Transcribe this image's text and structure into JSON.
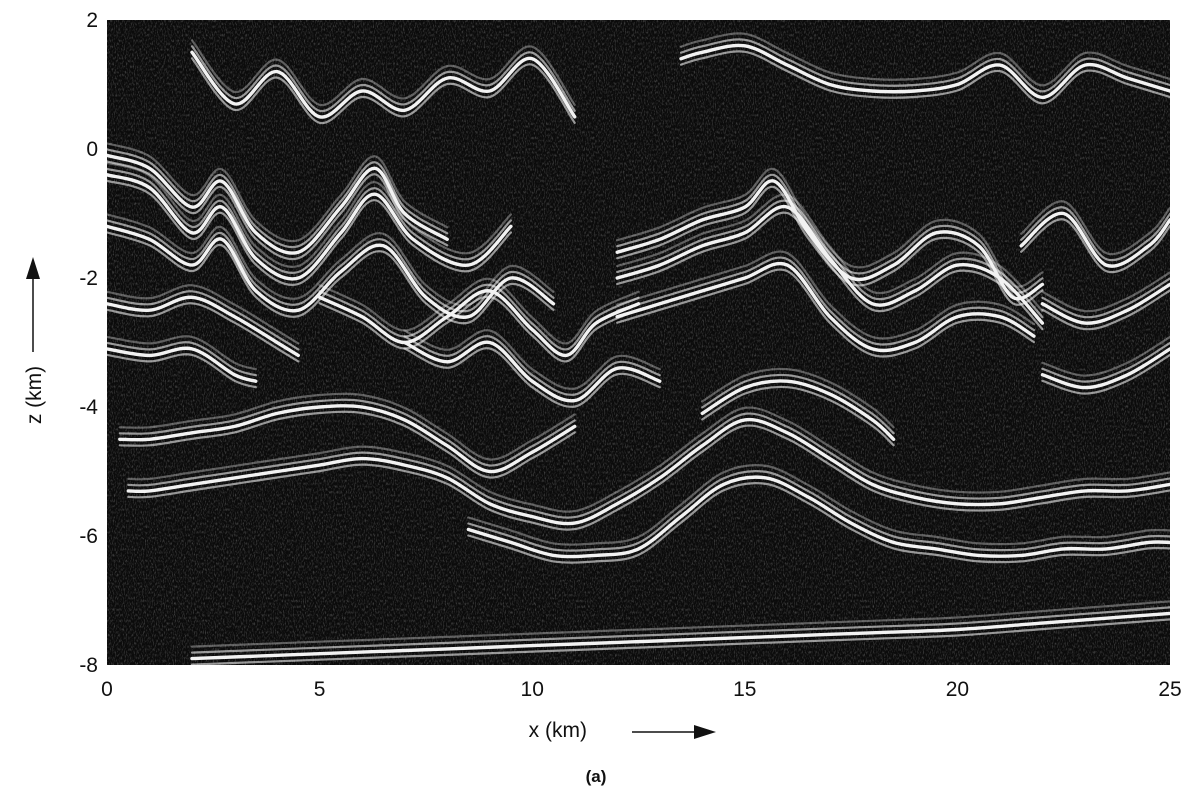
{
  "chart_data": {
    "type": "heatmap",
    "title": "",
    "panel_label": "(a)",
    "xlabel": "x (km)",
    "ylabel": "z (km)",
    "xlim": [
      0,
      25
    ],
    "ylim": [
      -8,
      2
    ],
    "x_ticks": [
      0,
      5,
      10,
      15,
      20,
      25
    ],
    "y_ticks": [
      2,
      0,
      -2,
      -4,
      -6,
      -8
    ],
    "grid": false,
    "legend": "none",
    "colors": {
      "background": "#0b0b0b",
      "reflector": "#f2f2f2",
      "noise": "#6a6a6a"
    },
    "reflectors": [
      {
        "name": "",
        "x": [
          2,
          3,
          4,
          5,
          6,
          7,
          8,
          9,
          10,
          11
        ],
        "z": [
          1.5,
          0.7,
          1.2,
          0.5,
          0.9,
          0.6,
          1.1,
          0.9,
          1.4,
          0.5
        ]
      },
      {
        "name": "",
        "x": [
          13.5,
          14,
          15,
          16,
          17,
          18,
          19,
          20,
          21,
          22,
          23,
          24,
          25
        ],
        "z": [
          1.4,
          1.5,
          1.6,
          1.3,
          1.0,
          0.9,
          0.9,
          1.0,
          1.3,
          0.8,
          1.3,
          1.1,
          0.9
        ]
      },
      {
        "name": "",
        "x": [
          0,
          1,
          2,
          2.7,
          3.5,
          4.5,
          5.5,
          6.3,
          7,
          8
        ],
        "z": [
          -0.1,
          -0.3,
          -0.9,
          -0.5,
          -1.3,
          -1.6,
          -0.9,
          -0.3,
          -1.0,
          -1.4
        ]
      },
      {
        "name": "",
        "x": [
          0,
          1,
          2,
          2.7,
          3.5,
          4.5,
          5.5,
          6.3,
          7.2,
          8.5,
          9.5
        ],
        "z": [
          -0.4,
          -0.6,
          -1.3,
          -0.9,
          -1.7,
          -2.0,
          -1.3,
          -0.7,
          -1.4,
          -1.8,
          -1.2
        ]
      },
      {
        "name": "",
        "x": [
          0,
          1,
          2,
          2.7,
          3.5,
          4.5,
          5.5,
          6.5,
          7.5,
          8.5,
          9.5,
          10.5
        ],
        "z": [
          -1.2,
          -1.4,
          -1.8,
          -1.4,
          -2.2,
          -2.5,
          -1.9,
          -1.5,
          -2.3,
          -2.6,
          -2.0,
          -2.4
        ]
      },
      {
        "name": "",
        "x": [
          0,
          1,
          2,
          3,
          4,
          4.5
        ],
        "z": [
          -2.4,
          -2.5,
          -2.3,
          -2.6,
          -3.0,
          -3.2
        ]
      },
      {
        "name": "",
        "x": [
          0,
          1,
          2,
          3,
          3.5
        ],
        "z": [
          -3.1,
          -3.2,
          -3.1,
          -3.5,
          -3.6
        ]
      },
      {
        "name": "",
        "x": [
          5,
          6,
          7,
          8,
          9,
          10,
          10.8,
          11.5,
          12.5
        ],
        "z": [
          -2.3,
          -2.6,
          -3.0,
          -2.6,
          -2.2,
          -2.8,
          -3.2,
          -2.7,
          -2.4
        ]
      },
      {
        "name": "",
        "x": [
          7,
          8,
          9,
          10,
          11,
          12,
          13
        ],
        "z": [
          -3.0,
          -3.3,
          -3.0,
          -3.6,
          -3.9,
          -3.4,
          -3.6
        ]
      },
      {
        "name": "",
        "x": [
          12,
          13,
          14,
          15,
          15.7,
          16.5,
          17.5,
          18.5,
          19.5,
          20.5,
          21.3,
          22
        ],
        "z": [
          -1.6,
          -1.4,
          -1.1,
          -0.9,
          -0.5,
          -1.3,
          -2.0,
          -1.8,
          -1.3,
          -1.5,
          -2.3,
          -2.1
        ]
      },
      {
        "name": "",
        "x": [
          12,
          13,
          14,
          15,
          16,
          17,
          18,
          19,
          20,
          21,
          22
        ],
        "z": [
          -2.0,
          -1.8,
          -1.5,
          -1.3,
          -0.9,
          -1.7,
          -2.4,
          -2.2,
          -1.8,
          -2.0,
          -2.7
        ]
      },
      {
        "name": "",
        "x": [
          12,
          13,
          14,
          15,
          16,
          17,
          18,
          19,
          20,
          21,
          21.8
        ],
        "z": [
          -2.6,
          -2.4,
          -2.2,
          -2.0,
          -1.8,
          -2.6,
          -3.1,
          -3.0,
          -2.6,
          -2.6,
          -2.9
        ]
      },
      {
        "name": "",
        "x": [
          21.5,
          22.5,
          23.5,
          24.5,
          25
        ],
        "z": [
          -1.5,
          -1.0,
          -1.8,
          -1.5,
          -1.1
        ]
      },
      {
        "name": "",
        "x": [
          22,
          23,
          24,
          25
        ],
        "z": [
          -2.4,
          -2.7,
          -2.5,
          -2.1
        ]
      },
      {
        "name": "",
        "x": [
          22,
          23,
          24,
          25
        ],
        "z": [
          -3.5,
          -3.7,
          -3.5,
          -3.1
        ]
      },
      {
        "name": "",
        "x": [
          0.3,
          1,
          2,
          3,
          4,
          5,
          6,
          7,
          8,
          9,
          10,
          11
        ],
        "z": [
          -4.5,
          -4.5,
          -4.4,
          -4.3,
          -4.1,
          -4.0,
          -4.0,
          -4.2,
          -4.6,
          -5.0,
          -4.7,
          -4.3
        ]
      },
      {
        "name": "",
        "x": [
          0.5,
          1,
          2,
          3,
          4,
          5,
          6,
          7,
          8,
          9,
          10,
          11,
          12,
          13,
          14,
          15,
          16,
          17,
          18,
          19,
          20,
          21,
          22,
          23,
          24,
          25
        ],
        "z": [
          -5.3,
          -5.3,
          -5.2,
          -5.1,
          -5.0,
          -4.9,
          -4.8,
          -4.9,
          -5.1,
          -5.5,
          -5.7,
          -5.8,
          -5.5,
          -5.1,
          -4.6,
          -4.2,
          -4.4,
          -4.8,
          -5.2,
          -5.4,
          -5.5,
          -5.5,
          -5.4,
          -5.3,
          -5.3,
          -5.2
        ]
      },
      {
        "name": "",
        "x": [
          8.5,
          9.5,
          10.5,
          11.5,
          12.5,
          13.5,
          14.5,
          15.5,
          16.5,
          17.5,
          18.5,
          19.5,
          20.5,
          21.5,
          22.5,
          23.5,
          24.5,
          25
        ],
        "z": [
          -5.9,
          -6.1,
          -6.3,
          -6.3,
          -6.2,
          -5.7,
          -5.2,
          -5.1,
          -5.4,
          -5.8,
          -6.1,
          -6.2,
          -6.3,
          -6.3,
          -6.2,
          -6.2,
          -6.1,
          -6.1
        ]
      },
      {
        "name": "",
        "x": [
          14,
          15,
          16,
          17,
          18,
          18.5
        ],
        "z": [
          -4.1,
          -3.7,
          -3.6,
          -3.8,
          -4.2,
          -4.5
        ]
      },
      {
        "name": "",
        "x": [
          2,
          4,
          6,
          8,
          10,
          12,
          14,
          16,
          18,
          20,
          22,
          24,
          25
        ],
        "z": [
          -7.9,
          -7.85,
          -7.8,
          -7.75,
          -7.7,
          -7.65,
          -7.6,
          -7.55,
          -7.5,
          -7.45,
          -7.35,
          -7.25,
          -7.2
        ]
      }
    ]
  }
}
